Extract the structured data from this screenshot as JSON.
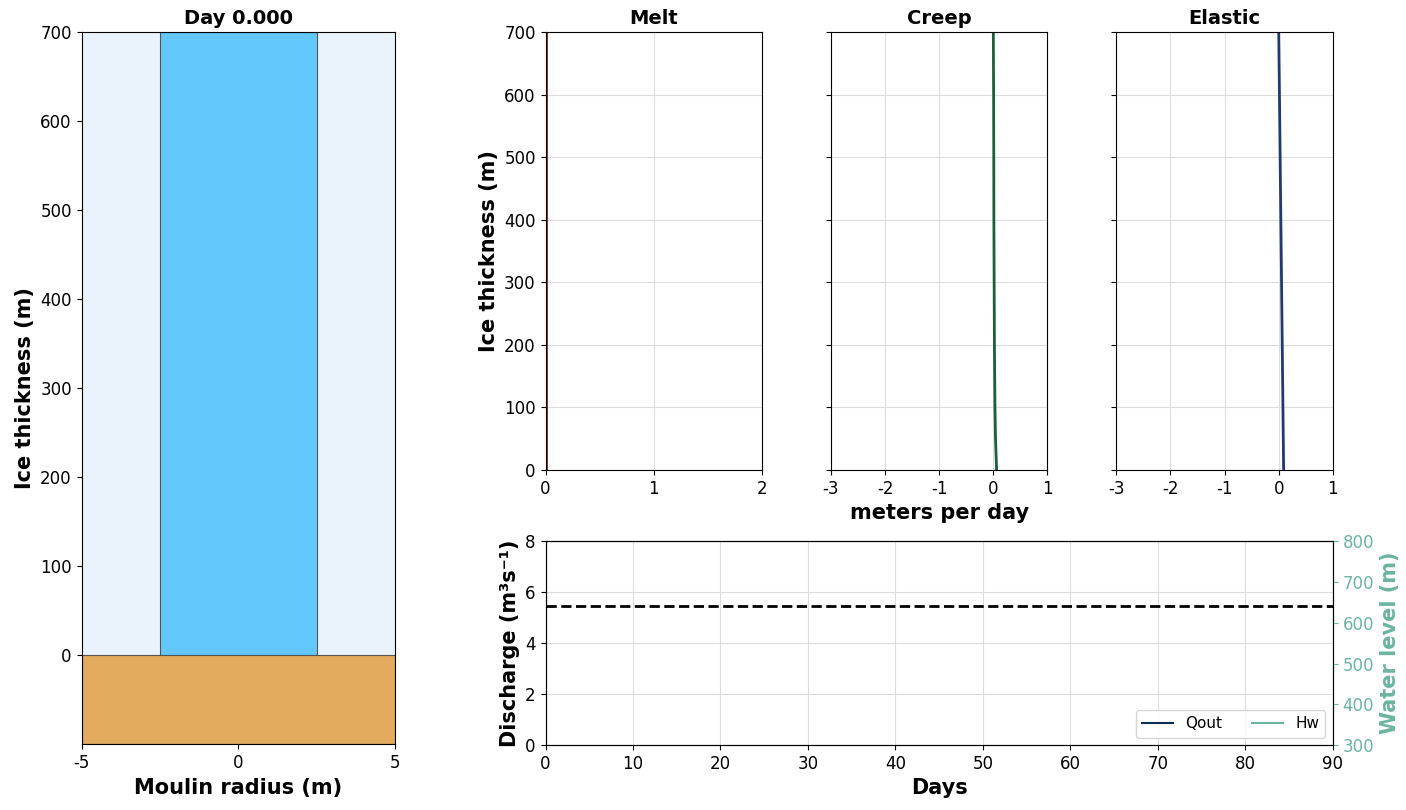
{
  "chart_data": [
    {
      "type": "moulin",
      "title": "Day 0.000",
      "x_label": "Moulin radius (m)",
      "y_label": "Ice thickness (m)",
      "xlim": [
        -5,
        5
      ],
      "xticks": [
        -5,
        0,
        5
      ],
      "ylim": [
        -100,
        700
      ],
      "yticks": [
        0,
        100,
        200,
        300,
        400,
        500,
        600,
        700
      ],
      "wall_radius": [
        -2.5,
        2.5
      ],
      "bed_top": 0,
      "water_top": 700,
      "colors": [
        "#eaf3fb",
        "#62c8fb",
        "#e3ab5d"
      ],
      "grid": false
    },
    {
      "type": "profile",
      "title": "Melt",
      "y_label": "Ice thickness (m)",
      "x": [
        0,
        0
      ],
      "y": [
        0,
        700
      ],
      "color": "#8b1a1a",
      "xlim": [
        0,
        2
      ],
      "xticks": [
        0,
        1,
        2
      ],
      "ylim": [
        0,
        700
      ],
      "yticks": [
        0,
        100,
        200,
        300,
        400,
        500,
        600,
        700
      ],
      "grid": true
    },
    {
      "type": "profile",
      "title": "Creep",
      "x_label": "meters per day",
      "x": [
        0.06,
        0.04,
        0.03,
        0.02,
        0.015,
        0.01,
        0.008,
        0.005,
        0.0
      ],
      "y": [
        0,
        50,
        100,
        200,
        300,
        400,
        500,
        600,
        700
      ],
      "color": "#1e5e3a",
      "xlim": [
        -3,
        1
      ],
      "xticks": [
        -3,
        -2,
        -1,
        0,
        1
      ],
      "ylim": [
        0,
        700
      ],
      "yticks": [
        0,
        100,
        200,
        300,
        400,
        500,
        600,
        700
      ],
      "grid": true,
      "tick_labels": "x"
    },
    {
      "type": "profile",
      "title": "Elastic",
      "x": [
        0.09,
        0.0
      ],
      "y": [
        0,
        700
      ],
      "color": "#1f3a6e",
      "xlim": [
        -3,
        1
      ],
      "xticks": [
        -3,
        -2,
        -1,
        0,
        1
      ],
      "ylim": [
        0,
        700
      ],
      "yticks": [
        0,
        100,
        200,
        300,
        400,
        500,
        600,
        700
      ],
      "grid": true,
      "tick_labels": "x"
    },
    {
      "type": "line",
      "x_label": "Days",
      "y_label": "Discharge (m³s⁻¹)",
      "y2_label": "Water level (m)",
      "xlim": [
        0,
        90
      ],
      "xticks": [
        0,
        10,
        20,
        30,
        40,
        50,
        60,
        70,
        80,
        90
      ],
      "ylim": [
        0,
        8
      ],
      "yticks": [
        0,
        2,
        4,
        6,
        8
      ],
      "y2lim": [
        300,
        800
      ],
      "y2ticks": [
        300,
        400,
        500,
        600,
        700,
        800
      ],
      "series": [
        {
          "name": "Qout",
          "color": "#0b2e4f",
          "x": [],
          "values": []
        },
        {
          "name": "Hw",
          "color": "#6cb4a0",
          "axis": "y2",
          "x": [],
          "values": []
        }
      ],
      "reference_line": {
        "value": 640,
        "axis": "y2",
        "color": "#000000",
        "line_style": "dashed"
      },
      "legend": "lower right",
      "grid": true
    }
  ]
}
